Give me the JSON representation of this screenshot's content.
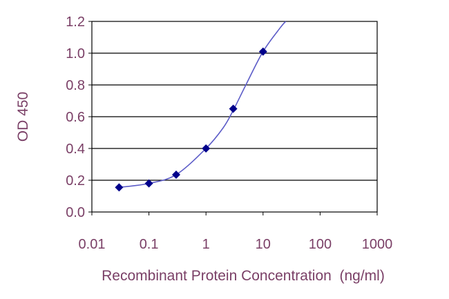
{
  "chart_data": {
    "type": "scatter",
    "title": "",
    "xlabel": "Recombinant Protein Concentration  (ng/ml)",
    "ylabel": "OD 450",
    "x_scale": "log",
    "xlim": [
      0.01,
      1000
    ],
    "ylim": [
      0,
      1.2
    ],
    "x_ticks": [
      "0.01",
      "0.1",
      "1",
      "10",
      "100",
      "1000"
    ],
    "y_ticks": [
      "0.0",
      "0.2",
      "0.4",
      "0.6",
      "0.8",
      "1.0",
      "1.2"
    ],
    "grid": "horizontal",
    "series": [
      {
        "x": [
          0.03,
          0.1,
          0.3,
          1,
          3,
          10
        ],
        "y": [
          0.155,
          0.18,
          0.235,
          0.4,
          0.65,
          1.01
        ]
      }
    ],
    "fit_curve": {
      "x": [
        0.03,
        0.1,
        0.3,
        1,
        2,
        3,
        5,
        10,
        20,
        25
      ],
      "y": [
        0.155,
        0.18,
        0.235,
        0.4,
        0.53,
        0.64,
        0.8,
        1.01,
        1.16,
        1.2
      ]
    },
    "colors": {
      "marker": "#00008b",
      "curve": "#5c5cc8",
      "text": "#7a3f66",
      "grid": "#000000"
    }
  }
}
